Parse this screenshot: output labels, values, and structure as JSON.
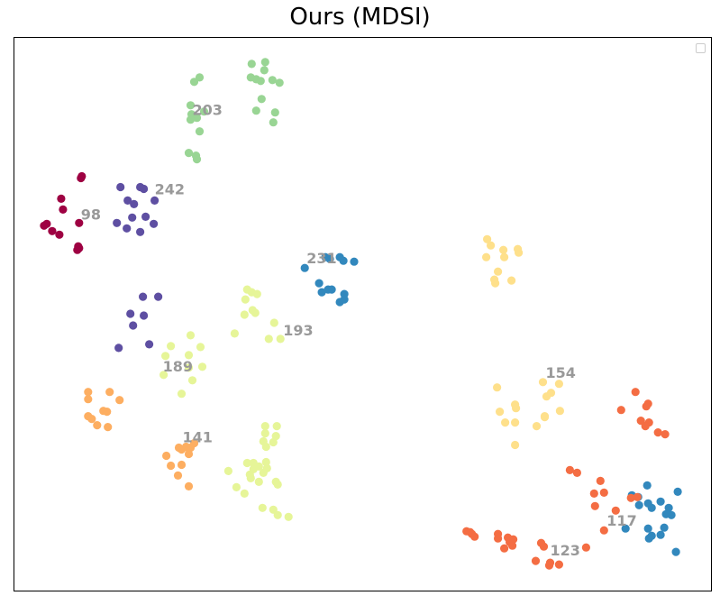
{
  "chart_data": {
    "type": "scatter",
    "title": "Ours (MDSI)",
    "xlabel": "",
    "ylabel": "",
    "xlim": [
      0,
      775
    ],
    "ylim": [
      0,
      615
    ],
    "grid": false,
    "axes_ticks": false,
    "legend": {
      "placement": "top-right",
      "entries": []
    },
    "series": [
      {
        "color": "#9e0142",
        "points": [
          [
            74,
            156
          ],
          [
            75,
            154
          ],
          [
            52,
            179
          ],
          [
            54,
            191
          ],
          [
            36,
            207
          ],
          [
            33,
            209
          ],
          [
            42,
            215
          ],
          [
            50,
            219
          ],
          [
            72,
            234
          ],
          [
            70,
            236
          ],
          [
            71,
            232
          ],
          [
            72,
            206
          ]
        ]
      },
      {
        "color": "#5e4fa2",
        "points": [
          [
            118,
            166
          ],
          [
            126,
            181
          ],
          [
            140,
            166
          ],
          [
            144,
            168
          ],
          [
            133,
            185
          ],
          [
            131,
            200
          ],
          [
            146,
            199
          ],
          [
            155,
            207
          ],
          [
            114,
            206
          ],
          [
            125,
            212
          ],
          [
            140,
            216
          ],
          [
            156,
            181
          ],
          [
            160,
            288
          ],
          [
            143,
            288
          ],
          [
            129,
            307
          ],
          [
            144,
            309
          ],
          [
            132,
            320
          ],
          [
            116,
            345
          ],
          [
            150,
            341
          ]
        ]
      },
      {
        "color": "#3288bd",
        "points": [
          [
            346,
            244
          ],
          [
            351,
            246
          ],
          [
            362,
            244
          ],
          [
            366,
            248
          ],
          [
            378,
            249
          ],
          [
            323,
            256
          ],
          [
            339,
            273
          ],
          [
            349,
            280
          ],
          [
            353,
            280
          ],
          [
            342,
            283
          ],
          [
            367,
            285
          ],
          [
            367,
            291
          ],
          [
            362,
            294
          ],
          [
            704,
            498
          ],
          [
            694,
            511
          ],
          [
            687,
            509
          ],
          [
            738,
            505
          ],
          [
            719,
            516
          ],
          [
            728,
            523
          ],
          [
            705,
            518
          ],
          [
            695,
            520
          ],
          [
            725,
            530
          ],
          [
            709,
            523
          ],
          [
            731,
            531
          ],
          [
            705,
            546
          ],
          [
            680,
            546
          ],
          [
            723,
            545
          ],
          [
            719,
            553
          ],
          [
            706,
            557
          ],
          [
            709,
            554
          ],
          [
            736,
            572
          ]
        ]
      },
      {
        "color": "#99d594",
        "points": [
          [
            206,
            44
          ],
          [
            200,
            49
          ],
          [
            264,
            29
          ],
          [
            279,
            27
          ],
          [
            278,
            36
          ],
          [
            263,
            44
          ],
          [
            269,
            46
          ],
          [
            287,
            47
          ],
          [
            274,
            48
          ],
          [
            295,
            50
          ],
          [
            196,
            75
          ],
          [
            211,
            82
          ],
          [
            197,
            85
          ],
          [
            203,
            89
          ],
          [
            196,
            91
          ],
          [
            290,
            83
          ],
          [
            269,
            81
          ],
          [
            288,
            94
          ],
          [
            275,
            68
          ],
          [
            206,
            104
          ],
          [
            194,
            128
          ],
          [
            202,
            131
          ],
          [
            203,
            135
          ]
        ]
      },
      {
        "color": "#e6f598",
        "points": [
          [
            259,
            280
          ],
          [
            264,
            283
          ],
          [
            270,
            285
          ],
          [
            257,
            291
          ],
          [
            265,
            303
          ],
          [
            256,
            308
          ],
          [
            268,
            306
          ],
          [
            289,
            317
          ],
          [
            245,
            329
          ],
          [
            283,
            335
          ],
          [
            296,
            335
          ],
          [
            174,
            343
          ],
          [
            196,
            331
          ],
          [
            207,
            344
          ],
          [
            194,
            353
          ],
          [
            168,
            354
          ],
          [
            194,
            367
          ],
          [
            209,
            366
          ],
          [
            166,
            375
          ],
          [
            198,
            381
          ],
          [
            186,
            396
          ],
          [
            279,
            432
          ],
          [
            292,
            432
          ],
          [
            279,
            440
          ],
          [
            291,
            443
          ],
          [
            277,
            449
          ],
          [
            288,
            450
          ],
          [
            280,
            455
          ],
          [
            238,
            482
          ],
          [
            259,
            473
          ],
          [
            266,
            473
          ],
          [
            280,
            472
          ],
          [
            272,
            477
          ],
          [
            266,
            480
          ],
          [
            262,
            486
          ],
          [
            277,
            484
          ],
          [
            281,
            479
          ],
          [
            263,
            490
          ],
          [
            291,
            494
          ],
          [
            272,
            494
          ],
          [
            247,
            500
          ],
          [
            293,
            497
          ],
          [
            256,
            507
          ],
          [
            276,
            523
          ],
          [
            288,
            525
          ],
          [
            293,
            531
          ],
          [
            305,
            533
          ]
        ]
      },
      {
        "color": "#fee08b",
        "points": [
          [
            526,
            224
          ],
          [
            530,
            231
          ],
          [
            544,
            236
          ],
          [
            560,
            235
          ],
          [
            561,
            239
          ],
          [
            525,
            244
          ],
          [
            545,
            244
          ],
          [
            538,
            260
          ],
          [
            553,
            270
          ],
          [
            535,
            273
          ],
          [
            534,
            269
          ],
          [
            588,
            383
          ],
          [
            606,
            385
          ],
          [
            537,
            389
          ],
          [
            592,
            399
          ],
          [
            597,
            395
          ],
          [
            557,
            408
          ],
          [
            558,
            412
          ],
          [
            540,
            416
          ],
          [
            546,
            428
          ],
          [
            557,
            428
          ],
          [
            590,
            421
          ],
          [
            607,
            415
          ],
          [
            581,
            432
          ],
          [
            590,
            422
          ],
          [
            557,
            453
          ]
        ]
      },
      {
        "color": "#fdae61",
        "points": [
          [
            82,
            394
          ],
          [
            82,
            402
          ],
          [
            106,
            394
          ],
          [
            117,
            403
          ],
          [
            99,
            415
          ],
          [
            103,
            416
          ],
          [
            82,
            421
          ],
          [
            86,
            424
          ],
          [
            92,
            431
          ],
          [
            104,
            433
          ],
          [
            183,
            456
          ],
          [
            191,
            455
          ],
          [
            186,
            458
          ],
          [
            196,
            456
          ],
          [
            200,
            451
          ],
          [
            194,
            463
          ],
          [
            169,
            465
          ],
          [
            174,
            476
          ],
          [
            186,
            475
          ],
          [
            182,
            487
          ],
          [
            194,
            499
          ]
        ]
      },
      {
        "color": "#f46d43",
        "points": [
          [
            691,
            394
          ],
          [
            705,
            407
          ],
          [
            703,
            410
          ],
          [
            675,
            414
          ],
          [
            697,
            426
          ],
          [
            706,
            428
          ],
          [
            702,
            432
          ],
          [
            716,
            439
          ],
          [
            724,
            441
          ],
          [
            618,
            481
          ],
          [
            626,
            484
          ],
          [
            652,
            493
          ],
          [
            645,
            507
          ],
          [
            656,
            506
          ],
          [
            686,
            512
          ],
          [
            646,
            521
          ],
          [
            669,
            526
          ],
          [
            656,
            548
          ],
          [
            693,
            511
          ],
          [
            503,
            549
          ],
          [
            507,
            550
          ],
          [
            509,
            552
          ],
          [
            512,
            555
          ],
          [
            538,
            552
          ],
          [
            549,
            556
          ],
          [
            555,
            558
          ],
          [
            538,
            557
          ],
          [
            551,
            561
          ],
          [
            554,
            565
          ],
          [
            545,
            568
          ],
          [
            586,
            562
          ],
          [
            589,
            566
          ],
          [
            636,
            567
          ],
          [
            580,
            582
          ],
          [
            596,
            584
          ],
          [
            595,
            587
          ],
          [
            606,
            586
          ]
        ]
      }
    ],
    "cluster_labels": [
      {
        "text": "203",
        "x": 198,
        "y": 86
      },
      {
        "text": "242",
        "x": 156,
        "y": 174
      },
      {
        "text": "98",
        "x": 74,
        "y": 202
      },
      {
        "text": "231",
        "x": 325,
        "y": 251
      },
      {
        "text": "193",
        "x": 299,
        "y": 331
      },
      {
        "text": "189",
        "x": 165,
        "y": 371
      },
      {
        "text": "154",
        "x": 591,
        "y": 378
      },
      {
        "text": "141",
        "x": 187,
        "y": 450
      },
      {
        "text": "117",
        "x": 659,
        "y": 543
      },
      {
        "text": "123",
        "x": 596,
        "y": 576
      }
    ]
  }
}
